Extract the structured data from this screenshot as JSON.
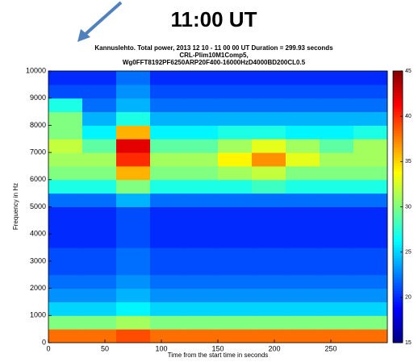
{
  "header": "11:00 UT",
  "chart_data": {
    "type": "heatmap",
    "title": [
      "Kannuslehto. Total power, 2013 12 10 - 11 00 00 UT  Duration = 299.93 seconds",
      "CRL-Plim10M1Comp5,",
      "Wg0FFT8192PF6250ARP20F400-16000HzD4000BD200CL0.5"
    ],
    "xlabel": "Time from the start time in seconds",
    "ylabel": "Frequency in Hz",
    "x_bins": [
      0,
      30,
      60,
      90,
      120,
      150,
      180,
      210,
      240,
      270,
      300
    ],
    "y_bins": [
      0,
      500,
      1000,
      1500,
      2000,
      2500,
      3000,
      3500,
      4000,
      4500,
      5000,
      5500,
      6000,
      6500,
      7000,
      7500,
      8000,
      8500,
      9000,
      9500,
      10000
    ],
    "z": [
      [
        38,
        38,
        39,
        38,
        38,
        38,
        38,
        38,
        38,
        38
      ],
      [
        30,
        30,
        31,
        30,
        30,
        30,
        30,
        30,
        30,
        30
      ],
      [
        25,
        25,
        26,
        25,
        25,
        25,
        25,
        25,
        25,
        25
      ],
      [
        23,
        23,
        24,
        23,
        23,
        23,
        23,
        23,
        23,
        23
      ],
      [
        22,
        22,
        23,
        22,
        22,
        22,
        22,
        22,
        22,
        22
      ],
      [
        21,
        21,
        22,
        21,
        21,
        21,
        21,
        21,
        21,
        21
      ],
      [
        21,
        21,
        22,
        21,
        21,
        21,
        21,
        21,
        21,
        21
      ],
      [
        20,
        20,
        21,
        20,
        20,
        20,
        20,
        20,
        20,
        20
      ],
      [
        20,
        20,
        21,
        20,
        20,
        20,
        20,
        20,
        20,
        20
      ],
      [
        20,
        20,
        21,
        20,
        20,
        20,
        20,
        20,
        20,
        20
      ],
      [
        22,
        22,
        24,
        22,
        22,
        22,
        22,
        22,
        22,
        22
      ],
      [
        27,
        27,
        30,
        27,
        27,
        27,
        28,
        27,
        27,
        27
      ],
      [
        30,
        30,
        36,
        30,
        30,
        31,
        32,
        30,
        30,
        30
      ],
      [
        31,
        31,
        40,
        31,
        31,
        34,
        37,
        33,
        31,
        31
      ],
      [
        32,
        29,
        42,
        29,
        29,
        31,
        33,
        31,
        29,
        31
      ],
      [
        30,
        26,
        36,
        26,
        26,
        27,
        27,
        26,
        26,
        27
      ],
      [
        30,
        24,
        27,
        24,
        24,
        24,
        24,
        24,
        24,
        24
      ],
      [
        27,
        22,
        24,
        22,
        22,
        22,
        22,
        22,
        22,
        22
      ],
      [
        21,
        21,
        23,
        21,
        21,
        21,
        21,
        21,
        21,
        21
      ],
      [
        20,
        20,
        22,
        20,
        20,
        20,
        20,
        20,
        20,
        20
      ]
    ],
    "xlim": [
      0,
      300
    ],
    "xticks": [
      0,
      50,
      100,
      150,
      200,
      250
    ],
    "ylim": [
      0,
      10000
    ],
    "yticks": [
      0,
      1000,
      2000,
      3000,
      4000,
      5000,
      6000,
      7000,
      8000,
      9000,
      10000
    ],
    "colormap": "jet",
    "clim": [
      15,
      45
    ],
    "cticks": [
      15,
      20,
      25,
      30,
      35,
      40,
      45
    ]
  }
}
